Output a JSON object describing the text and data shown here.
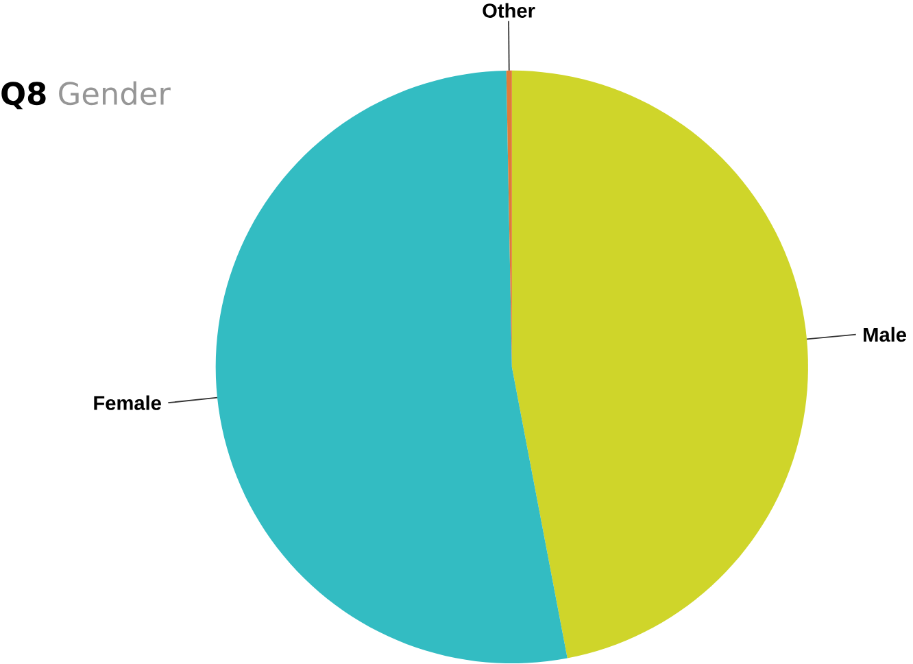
{
  "chart_data": {
    "type": "pie",
    "title": "**Q8** Gender",
    "categories": [
      "Male",
      "Female",
      "Other"
    ],
    "values": [
      47,
      52.7,
      0.3
    ],
    "colors": [
      "#cfd52a",
      "#33bcc2",
      "#e07b39"
    ]
  }
}
